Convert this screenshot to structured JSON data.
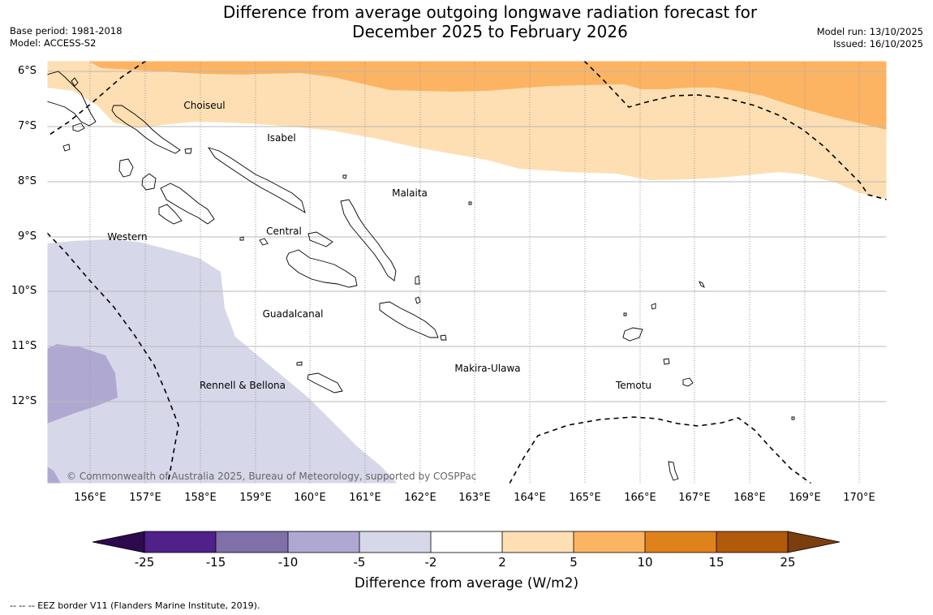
{
  "title": {
    "line1": "Difference from average outgoing longwave radiation forecast for",
    "line2": "December 2025 to February 2026"
  },
  "meta": {
    "base_period": "Base period: 1981-2018",
    "model": "Model: ACCESS-S2",
    "model_run": "Model run: 13/10/2025",
    "issued": "Issued: 16/10/2025"
  },
  "map": {
    "lat_labels": [
      "6°S",
      "7°S",
      "8°S",
      "9°S",
      "10°S",
      "11°S",
      "12°S"
    ],
    "lon_labels": [
      "156°E",
      "157°E",
      "158°E",
      "159°E",
      "160°E",
      "161°E",
      "162°E",
      "163°E",
      "164°E",
      "165°E",
      "166°E",
      "167°E",
      "168°E",
      "169°E",
      "170°E"
    ],
    "regions": [
      "Choiseul",
      "Isabel",
      "Malaita",
      "Western",
      "Central",
      "Guadalcanal",
      "Makira-Ulawa",
      "Rennell & Bellona",
      "Temotu"
    ],
    "copyright": "© Commonwealth of Australia 2025, Bureau of Meteorology, supported by COSPPac"
  },
  "colorbar": {
    "ticks": [
      "-25",
      "-15",
      "-10",
      "-5",
      "-2",
      "2",
      "5",
      "10",
      "15",
      "25"
    ],
    "colors": [
      "#4f2189",
      "#7f70aa",
      "#afa9d2",
      "#d7d7ea",
      "#ffffff",
      "#fedfb3",
      "#fdb462",
      "#e0821b",
      "#b05a0a"
    ],
    "under_color": "#2d0a4e",
    "over_color": "#7a3f0d",
    "label": "Difference from average (W/m2)"
  },
  "legend_note": "--  --  -- EEZ border V11 (Flanders Marine Institute, 2019)."
}
